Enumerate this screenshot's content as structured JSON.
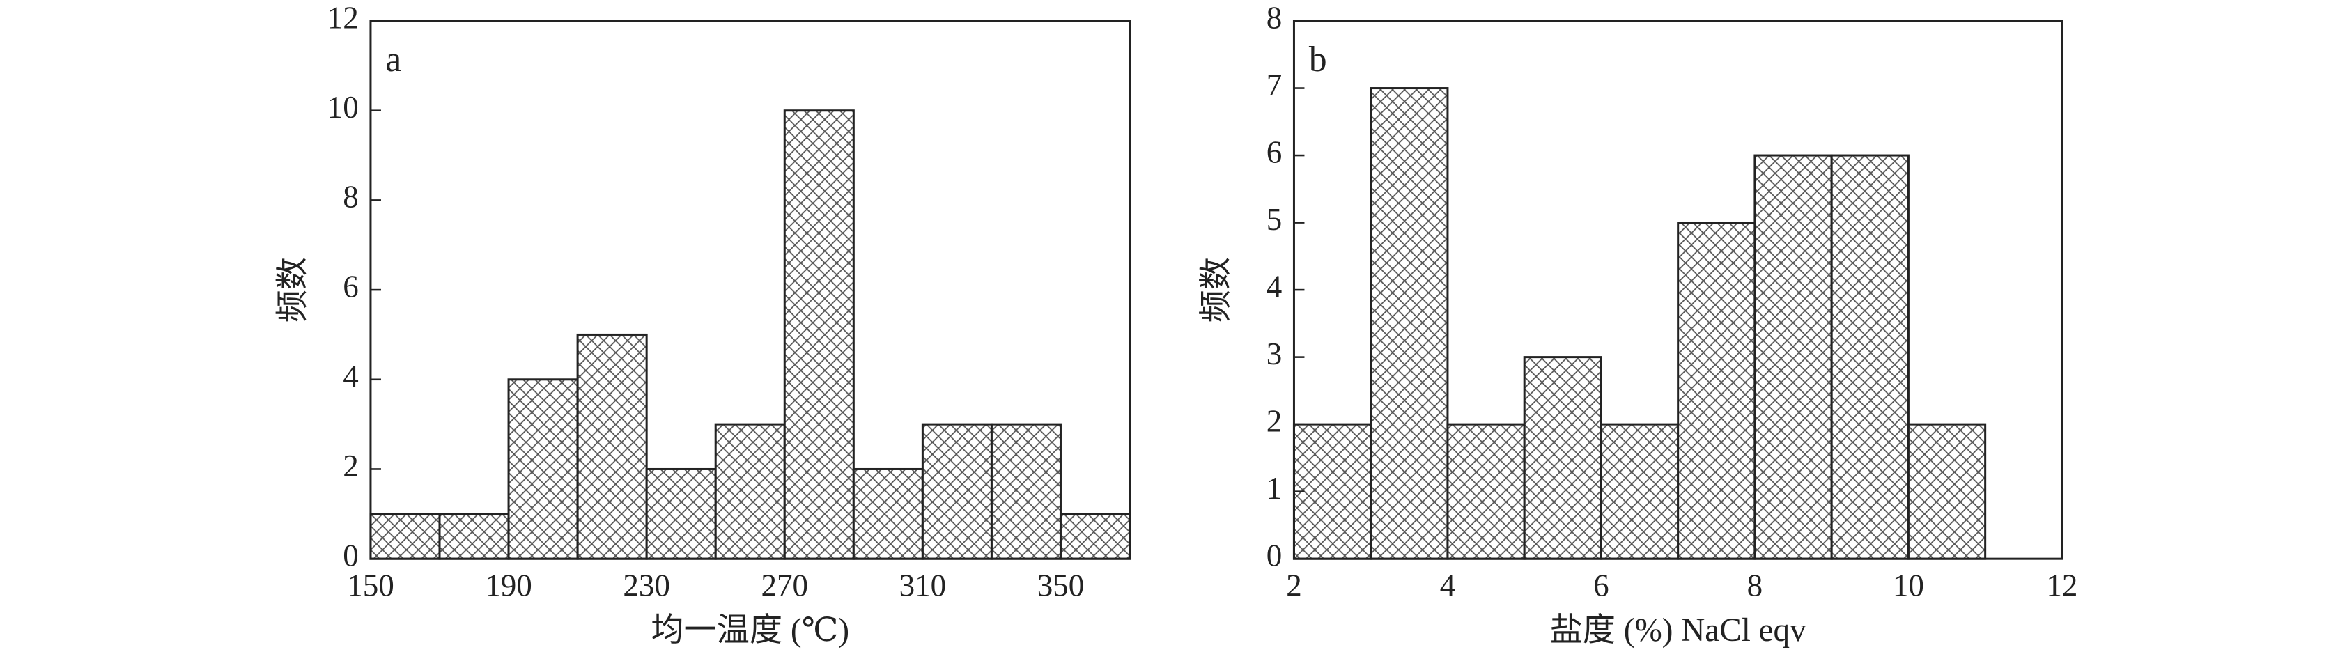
{
  "chart_data": [
    {
      "type": "histogram",
      "annotation": "a",
      "xlabel": "均一温度 (℃)",
      "ylabel": "频数",
      "bins": [
        150,
        170,
        190,
        210,
        230,
        250,
        270,
        290,
        310,
        330,
        350,
        370
      ],
      "values": [
        1,
        1,
        4,
        5,
        2,
        3,
        10,
        2,
        3,
        3,
        1
      ],
      "xlim": [
        150,
        370
      ],
      "ylim": [
        0,
        12
      ],
      "xticks": [
        150,
        190,
        230,
        270,
        310,
        350
      ],
      "yticks": [
        0,
        2,
        4,
        6,
        8,
        10,
        12
      ],
      "color": "#222222"
    },
    {
      "type": "histogram",
      "annotation": "b",
      "xlabel": "盐度 (%) NaCl eqv",
      "ylabel": "频数",
      "bins": [
        2,
        3,
        4,
        5,
        6,
        7,
        8,
        9,
        10,
        11
      ],
      "values": [
        2,
        7,
        2,
        3,
        2,
        5,
        6,
        6,
        2
      ],
      "xlim": [
        2,
        12
      ],
      "ylim": [
        0,
        8
      ],
      "xticks": [
        2,
        4,
        6,
        8,
        10,
        12
      ],
      "yticks": [
        0,
        1,
        2,
        3,
        4,
        5,
        6,
        7,
        8
      ],
      "color": "#222222"
    }
  ]
}
